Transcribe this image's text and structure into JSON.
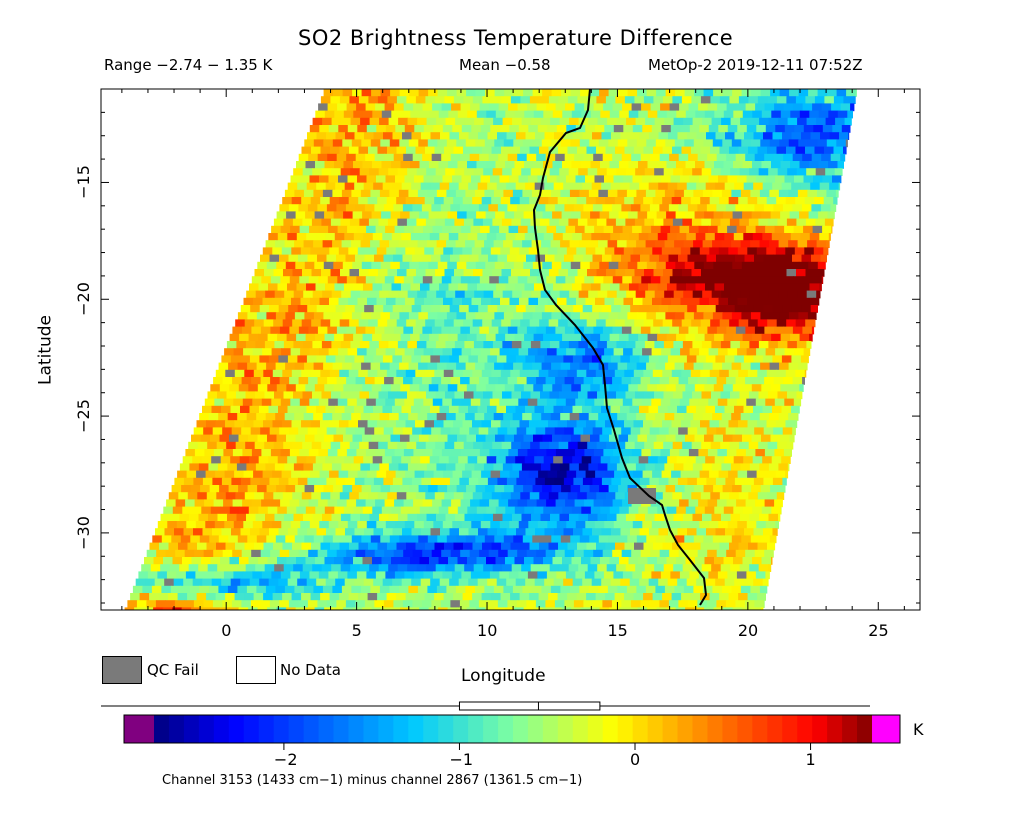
{
  "header": {
    "title": "SO2 Brightness Temperature Difference",
    "range": "Range −2.74 − 1.35 K",
    "mean": "Mean −0.58",
    "satellite_time": "MetOp-2 2019-12-11 07:52Z"
  },
  "axes": {
    "xlabel": "Longitude",
    "ylabel": "Latitude",
    "xticks": [
      "0",
      "5",
      "10",
      "15",
      "20",
      "25"
    ],
    "yticks": [
      "−15",
      "−20",
      "−25",
      "−30"
    ]
  },
  "map_extent": {
    "lon_min": -4.8,
    "lon_max": 26.6,
    "lat_min": -33.3,
    "lat_max": -11.0
  },
  "legend": {
    "qc_fail": "QC Fail",
    "no_data": "No Data",
    "qc_fail_color": "#7a7a7a",
    "no_data_color": "#ffffff"
  },
  "colorbar": {
    "unit": "K",
    "ticks": [
      "−2",
      "−1",
      "0",
      "1"
    ],
    "tick_values": [
      -2,
      -1,
      0,
      1
    ],
    "min": -2.74,
    "max": 1.35,
    "mean": -0.58,
    "boxplot": {
      "q1": -1.0,
      "median": -0.55,
      "q3": -0.2
    },
    "under_color": "#800080",
    "over_color": "#ff00ff"
  },
  "footer": "Channel 3153 (1433 cm−1) minus channel 2867 (1361.5 cm−1)"
}
